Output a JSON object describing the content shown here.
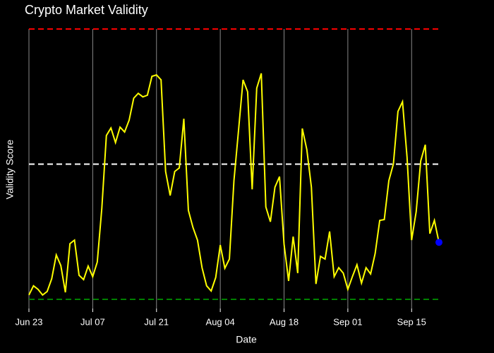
{
  "chart_data": {
    "type": "line",
    "title": "Crypto Market Validity",
    "x_label": "Date",
    "y_label": "Validity Score",
    "categories": [
      "Jun 23",
      null,
      null,
      null,
      null,
      null,
      null,
      null,
      null,
      null,
      null,
      null,
      null,
      null,
      "Jul 07",
      null,
      null,
      null,
      null,
      null,
      null,
      null,
      null,
      null,
      null,
      null,
      null,
      null,
      "Jul 21",
      null,
      null,
      null,
      null,
      null,
      null,
      null,
      null,
      null,
      null,
      null,
      null,
      null,
      "Aug 04",
      null,
      null,
      null,
      null,
      null,
      null,
      null,
      null,
      null,
      null,
      null,
      null,
      null,
      "Aug 18",
      null,
      null,
      null,
      null,
      null,
      null,
      null,
      null,
      null,
      null,
      null,
      null,
      null,
      "Sep 01",
      null,
      null,
      null,
      null,
      null,
      null,
      null,
      null,
      null,
      null,
      null,
      null,
      null,
      "Sep 15",
      null,
      null,
      null,
      null,
      null,
      null
    ],
    "series": [
      {
        "color": "#ffff00",
        "values": [
          0.016,
          0.05,
          0.037,
          0.016,
          0.029,
          0.076,
          0.164,
          0.125,
          0.026,
          0.206,
          0.219,
          0.089,
          0.073,
          0.123,
          0.084,
          0.138,
          0.337,
          0.606,
          0.634,
          0.58,
          0.637,
          0.619,
          0.663,
          0.744,
          0.762,
          0.749,
          0.755,
          0.825,
          0.83,
          0.812,
          0.473,
          0.384,
          0.473,
          0.486,
          0.668,
          0.329,
          0.266,
          0.219,
          0.117,
          0.05,
          0.031,
          0.081,
          0.201,
          0.115,
          0.149,
          0.439,
          0.624,
          0.812,
          0.768,
          0.407,
          0.781,
          0.836,
          0.342,
          0.287,
          0.415,
          0.454,
          0.204,
          0.068,
          0.232,
          0.097,
          0.632,
          0.554,
          0.415,
          0.057,
          0.159,
          0.149,
          0.251,
          0.084,
          0.117,
          0.097,
          0.037,
          0.084,
          0.128,
          0.06,
          0.117,
          0.094,
          0.17,
          0.292,
          0.295,
          0.439,
          0.501,
          0.695,
          0.731,
          0.525,
          0.219,
          0.324,
          0.512,
          0.572,
          0.243,
          0.292,
          0.211
        ]
      }
    ],
    "highlight_color": "#0000ff",
    "reference_lines": [
      {
        "value": 1,
        "color": "#ff0000"
      },
      {
        "value": 0.5,
        "color": "#ffffff"
      },
      {
        "value": 0,
        "color": "#008000"
      }
    ],
    "ylim": [
      -0.034,
      1.029
    ],
    "grid": "x"
  }
}
